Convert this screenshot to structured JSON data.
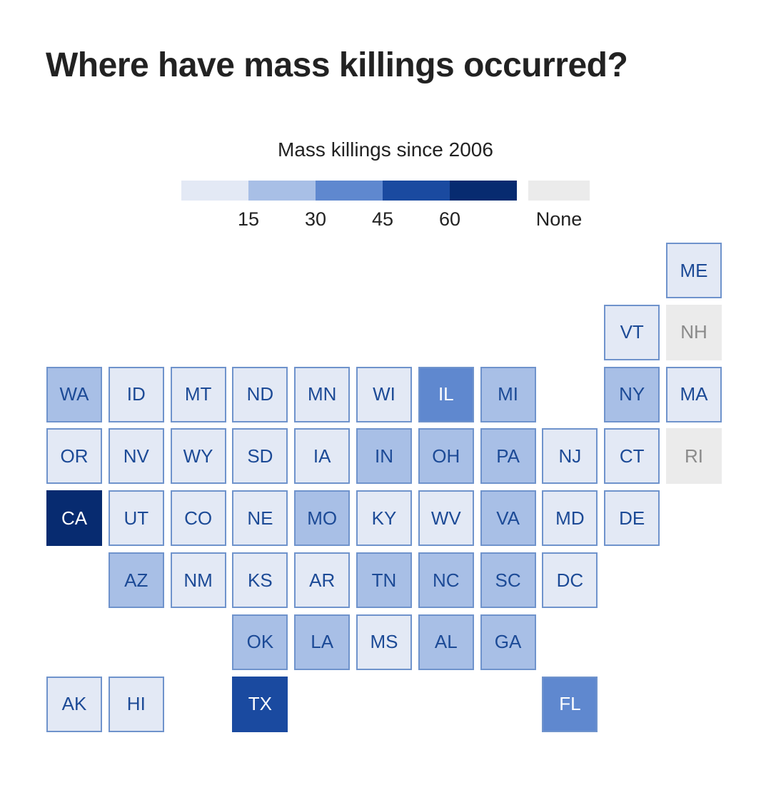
{
  "title": "Where have mass killings occurred?",
  "legend": {
    "title": "Mass killings since 2006",
    "ticks": [
      "15",
      "30",
      "45",
      "60"
    ],
    "none_label": "None",
    "colors": [
      "#e3e9f5",
      "#a8bfe6",
      "#5f88cf",
      "#1a4aa0",
      "#072b70"
    ],
    "none_color": "#ebebeb",
    "border_color": "#6f93cc",
    "none_text_color": "#8a8a8a",
    "light_text_color": "#1c4a96",
    "dark_text_color": "#ffffff"
  },
  "chart_data": {
    "type": "heatmap",
    "title": "Where have mass killings occurred?",
    "legend_title": "Mass killings since 2006",
    "bins": [
      {
        "range": [
          0,
          15
        ],
        "color": "#e3e9f5"
      },
      {
        "range": [
          15,
          30
        ],
        "color": "#a8bfe6"
      },
      {
        "range": [
          30,
          45
        ],
        "color": "#5f88cf"
      },
      {
        "range": [
          45,
          60
        ],
        "color": "#1a4aa0"
      },
      {
        "range": [
          60,
          null
        ],
        "color": "#072b70"
      },
      {
        "range": "None",
        "color": "#ebebeb"
      }
    ],
    "states": [
      {
        "abbr": "ME",
        "col": 10,
        "row": 0,
        "bin": 0
      },
      {
        "abbr": "VT",
        "col": 9,
        "row": 1,
        "bin": 0
      },
      {
        "abbr": "NH",
        "col": 10,
        "row": 1,
        "bin": "none"
      },
      {
        "abbr": "WA",
        "col": 0,
        "row": 2,
        "bin": 1
      },
      {
        "abbr": "ID",
        "col": 1,
        "row": 2,
        "bin": 0
      },
      {
        "abbr": "MT",
        "col": 2,
        "row": 2,
        "bin": 0
      },
      {
        "abbr": "ND",
        "col": 3,
        "row": 2,
        "bin": 0
      },
      {
        "abbr": "MN",
        "col": 4,
        "row": 2,
        "bin": 0
      },
      {
        "abbr": "WI",
        "col": 5,
        "row": 2,
        "bin": 0
      },
      {
        "abbr": "IL",
        "col": 6,
        "row": 2,
        "bin": 2
      },
      {
        "abbr": "MI",
        "col": 7,
        "row": 2,
        "bin": 1
      },
      {
        "abbr": "NY",
        "col": 9,
        "row": 2,
        "bin": 1
      },
      {
        "abbr": "MA",
        "col": 10,
        "row": 2,
        "bin": 0
      },
      {
        "abbr": "OR",
        "col": 0,
        "row": 3,
        "bin": 0
      },
      {
        "abbr": "NV",
        "col": 1,
        "row": 3,
        "bin": 0
      },
      {
        "abbr": "WY",
        "col": 2,
        "row": 3,
        "bin": 0
      },
      {
        "abbr": "SD",
        "col": 3,
        "row": 3,
        "bin": 0
      },
      {
        "abbr": "IA",
        "col": 4,
        "row": 3,
        "bin": 0
      },
      {
        "abbr": "IN",
        "col": 5,
        "row": 3,
        "bin": 1
      },
      {
        "abbr": "OH",
        "col": 6,
        "row": 3,
        "bin": 1
      },
      {
        "abbr": "PA",
        "col": 7,
        "row": 3,
        "bin": 1
      },
      {
        "abbr": "NJ",
        "col": 8,
        "row": 3,
        "bin": 0
      },
      {
        "abbr": "CT",
        "col": 9,
        "row": 3,
        "bin": 0
      },
      {
        "abbr": "RI",
        "col": 10,
        "row": 3,
        "bin": "none"
      },
      {
        "abbr": "CA",
        "col": 0,
        "row": 4,
        "bin": 4
      },
      {
        "abbr": "UT",
        "col": 1,
        "row": 4,
        "bin": 0
      },
      {
        "abbr": "CO",
        "col": 2,
        "row": 4,
        "bin": 0
      },
      {
        "abbr": "NE",
        "col": 3,
        "row": 4,
        "bin": 0
      },
      {
        "abbr": "MO",
        "col": 4,
        "row": 4,
        "bin": 1
      },
      {
        "abbr": "KY",
        "col": 5,
        "row": 4,
        "bin": 0
      },
      {
        "abbr": "WV",
        "col": 6,
        "row": 4,
        "bin": 0
      },
      {
        "abbr": "VA",
        "col": 7,
        "row": 4,
        "bin": 1
      },
      {
        "abbr": "MD",
        "col": 8,
        "row": 4,
        "bin": 0
      },
      {
        "abbr": "DE",
        "col": 9,
        "row": 4,
        "bin": 0
      },
      {
        "abbr": "AZ",
        "col": 1,
        "row": 5,
        "bin": 1
      },
      {
        "abbr": "NM",
        "col": 2,
        "row": 5,
        "bin": 0
      },
      {
        "abbr": "KS",
        "col": 3,
        "row": 5,
        "bin": 0
      },
      {
        "abbr": "AR",
        "col": 4,
        "row": 5,
        "bin": 0
      },
      {
        "abbr": "TN",
        "col": 5,
        "row": 5,
        "bin": 1
      },
      {
        "abbr": "NC",
        "col": 6,
        "row": 5,
        "bin": 1
      },
      {
        "abbr": "SC",
        "col": 7,
        "row": 5,
        "bin": 1
      },
      {
        "abbr": "DC",
        "col": 8,
        "row": 5,
        "bin": 0
      },
      {
        "abbr": "OK",
        "col": 3,
        "row": 6,
        "bin": 1
      },
      {
        "abbr": "LA",
        "col": 4,
        "row": 6,
        "bin": 1
      },
      {
        "abbr": "MS",
        "col": 5,
        "row": 6,
        "bin": 0
      },
      {
        "abbr": "AL",
        "col": 6,
        "row": 6,
        "bin": 1
      },
      {
        "abbr": "GA",
        "col": 7,
        "row": 6,
        "bin": 1
      },
      {
        "abbr": "AK",
        "col": 0,
        "row": 7,
        "bin": 0
      },
      {
        "abbr": "HI",
        "col": 1,
        "row": 7,
        "bin": 0
      },
      {
        "abbr": "TX",
        "col": 3,
        "row": 7,
        "bin": 3
      },
      {
        "abbr": "FL",
        "col": 8,
        "row": 7,
        "bin": 2
      }
    ]
  }
}
